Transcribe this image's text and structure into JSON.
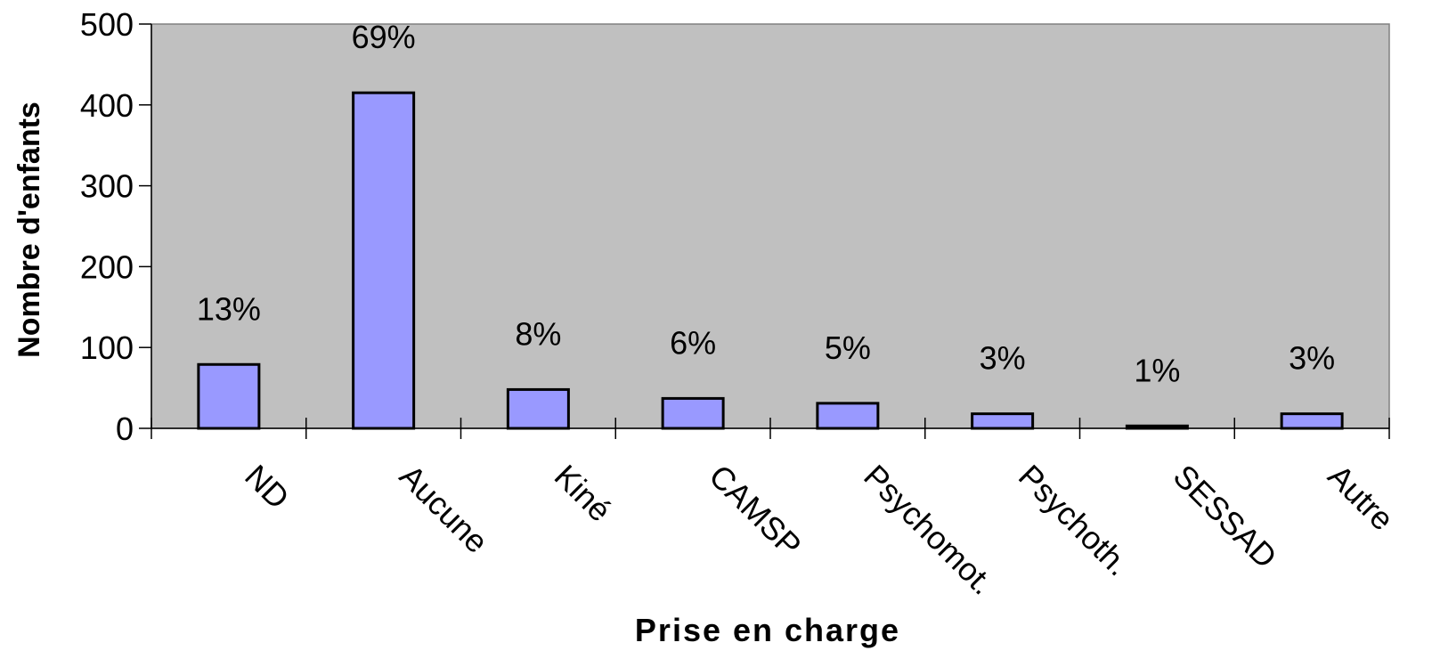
{
  "chart_data": {
    "type": "bar",
    "x_label": "Prise en charge",
    "y_label": "Nombre d'enfants",
    "categories": [
      "ND",
      "Aucune",
      "Kiné",
      "CAMSP",
      "Psychomot.",
      "Psychoth.",
      "SESSAD",
      "Autre"
    ],
    "values": [
      79,
      415,
      48,
      37,
      31,
      18,
      3,
      18
    ],
    "percent_labels": [
      "13%",
      "69%",
      "8%",
      "6%",
      "5%",
      "3%",
      "1%",
      "3%"
    ],
    "color": "#9999ff",
    "background": "#c0c0c0",
    "ylim": [
      0,
      500
    ],
    "yticks": [
      0,
      100,
      200,
      300,
      400,
      500
    ]
  }
}
